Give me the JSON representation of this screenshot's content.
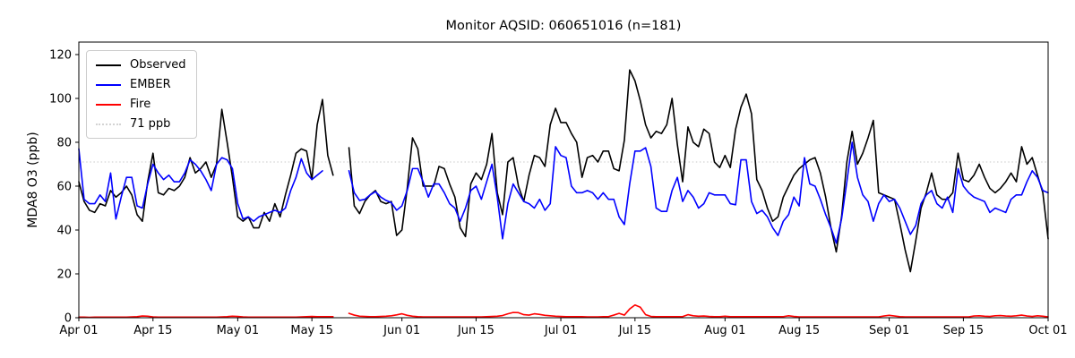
{
  "title": "Monitor AQSID: 060651016 (n=181)",
  "chart_data": {
    "type": "line",
    "title": "Monitor AQSID: 060651016 (n=181)",
    "xlabel": "",
    "ylabel": "MDA8 O3 (ppb)",
    "ylim": [
      0,
      125.7
    ],
    "yticks": [
      0,
      20,
      40,
      60,
      80,
      100,
      120
    ],
    "x_days_total": 183,
    "xticks": [
      {
        "day": 0,
        "label": "Apr 01"
      },
      {
        "day": 14,
        "label": "Apr 15"
      },
      {
        "day": 30,
        "label": "May 01"
      },
      {
        "day": 44,
        "label": "May 15"
      },
      {
        "day": 61,
        "label": "Jun 01"
      },
      {
        "day": 75,
        "label": "Jun 15"
      },
      {
        "day": 91,
        "label": "Jul 01"
      },
      {
        "day": 105,
        "label": "Jul 15"
      },
      {
        "day": 122,
        "label": "Aug 01"
      },
      {
        "day": 136,
        "label": "Aug 15"
      },
      {
        "day": 153,
        "label": "Sep 01"
      },
      {
        "day": 167,
        "label": "Sep 15"
      },
      {
        "day": 183,
        "label": "Oct 01"
      }
    ],
    "grid": false,
    "legend_position": "upper left",
    "reference_line": {
      "label": "71 ppb",
      "value": 71,
      "color": "#d3d3d3",
      "style": "dotted"
    },
    "series": [
      {
        "name": "Observed",
        "color": "#000000",
        "style": "solid",
        "values": [
          62,
          53,
          49,
          48,
          52,
          51,
          58,
          55,
          57,
          60,
          56,
          47,
          44,
          62,
          75,
          57,
          56,
          59,
          58,
          60,
          64,
          73,
          66,
          68,
          71,
          64,
          70,
          95,
          80,
          64,
          46,
          44,
          46,
          41,
          41,
          48,
          44,
          52,
          46,
          56,
          65,
          75,
          77,
          76,
          63,
          88,
          99.5,
          74,
          65,
          null,
          null,
          77.5,
          51,
          47.5,
          53,
          56,
          58,
          53,
          52,
          53,
          37.5,
          40,
          59,
          82,
          77,
          60,
          60,
          60,
          69,
          68,
          61,
          55,
          41,
          37,
          61,
          66,
          63,
          70,
          84,
          57,
          47,
          71,
          73,
          60,
          53,
          65,
          74,
          73,
          69,
          88,
          95.5,
          89,
          89,
          84,
          80,
          64,
          73,
          74,
          71,
          76,
          76,
          68,
          67,
          81,
          113,
          108,
          99,
          88,
          82,
          85,
          84,
          88,
          100,
          79,
          62,
          87,
          80,
          78,
          86,
          84,
          71,
          68.5,
          74,
          68.5,
          86,
          96,
          102,
          93,
          63,
          58,
          50,
          44,
          46,
          55,
          60,
          65,
          68,
          70,
          72,
          73,
          66,
          55,
          41,
          30,
          46,
          71,
          85,
          70,
          75,
          82,
          90,
          57,
          56,
          55,
          54,
          43,
          31,
          21,
          35,
          50,
          57,
          66,
          56,
          54,
          54,
          57,
          75,
          63,
          62,
          65,
          70,
          64,
          59,
          57,
          59,
          62,
          66,
          62,
          78,
          70,
          73,
          65,
          57,
          36
        ]
      },
      {
        "name": "EMBER",
        "color": "#0000ff",
        "style": "solid",
        "values": [
          77,
          54,
          52,
          52,
          56,
          53,
          66,
          45,
          55,
          64,
          64,
          51,
          50,
          61,
          70,
          66,
          63,
          65,
          62,
          62,
          66,
          72,
          70,
          67,
          63,
          58,
          70,
          73,
          72,
          68,
          52,
          45,
          46,
          44,
          46,
          47,
          48,
          49,
          48,
          50,
          58,
          64,
          72.5,
          66,
          63,
          65,
          67,
          null,
          null,
          null,
          null,
          67,
          57,
          53.5,
          54,
          56,
          57.5,
          55,
          53.5,
          52.5,
          49,
          51,
          58,
          68,
          68,
          62,
          55,
          61,
          61,
          57,
          52,
          50,
          44,
          50,
          58,
          60,
          54,
          62,
          70,
          55,
          36,
          52,
          61,
          57,
          53,
          52,
          50,
          54,
          49,
          52,
          78,
          74,
          73,
          60,
          57,
          57,
          58,
          57,
          54,
          57,
          54,
          54,
          46,
          42.5,
          61,
          76,
          76,
          77.5,
          69,
          50,
          48.5,
          48.5,
          58,
          64,
          53,
          58,
          55,
          50,
          52,
          57,
          56,
          56,
          56,
          52,
          51.5,
          72,
          72,
          53,
          47.5,
          49,
          46,
          41,
          37.5,
          44,
          47,
          55,
          51,
          73,
          61,
          60,
          54,
          47,
          41,
          34,
          45,
          62,
          80,
          64,
          56,
          53,
          44,
          52,
          56,
          53,
          54,
          50,
          44,
          38,
          42,
          52,
          56,
          58,
          52,
          50,
          55,
          48,
          68,
          60,
          57,
          55,
          54,
          53,
          48,
          50,
          49,
          48,
          54,
          56,
          56,
          62,
          67,
          64,
          58,
          57
        ]
      },
      {
        "name": "Fire",
        "color": "#ff0000",
        "style": "solid",
        "values": [
          0.3,
          0.3,
          0.2,
          0.3,
          0.3,
          0.3,
          0.3,
          0.3,
          0.3,
          0.3,
          0.4,
          0.5,
          0.8,
          0.7,
          0.4,
          0.3,
          0.3,
          0.3,
          0.3,
          0.3,
          0.3,
          0.3,
          0.3,
          0.3,
          0.3,
          0.3,
          0.3,
          0.4,
          0.5,
          0.7,
          0.6,
          0.4,
          0.3,
          0.3,
          0.3,
          0.3,
          0.3,
          0.3,
          0.3,
          0.3,
          0.3,
          0.3,
          0.4,
          0.5,
          0.6,
          0.5,
          0.5,
          0.5,
          0.5,
          null,
          null,
          2.0,
          1.2,
          0.7,
          0.6,
          0.5,
          0.5,
          0.6,
          0.7,
          0.9,
          1.3,
          1.8,
          1.1,
          0.7,
          0.5,
          0.4,
          0.4,
          0.4,
          0.4,
          0.4,
          0.4,
          0.4,
          0.4,
          0.4,
          0.4,
          0.4,
          0.4,
          0.5,
          0.6,
          0.7,
          1.0,
          1.8,
          2.4,
          2.3,
          1.4,
          1.2,
          1.8,
          1.5,
          1.1,
          0.9,
          0.7,
          0.6,
          0.5,
          0.5,
          0.5,
          0.5,
          0.4,
          0.4,
          0.4,
          0.5,
          0.5,
          1.2,
          2.0,
          1.2,
          4.0,
          5.8,
          4.8,
          1.4,
          0.6,
          0.5,
          0.5,
          0.5,
          0.5,
          0.5,
          0.5,
          1.4,
          0.9,
          0.7,
          0.8,
          0.6,
          0.5,
          0.5,
          0.7,
          0.5,
          0.5,
          0.5,
          0.5,
          0.5,
          0.5,
          0.5,
          0.5,
          0.5,
          0.5,
          0.5,
          0.9,
          0.6,
          0.4,
          0.4,
          0.4,
          0.4,
          0.4,
          0.4,
          0.4,
          0.4,
          0.4,
          0.4,
          0.4,
          0.4,
          0.4,
          0.4,
          0.4,
          0.4,
          0.8,
          1.1,
          0.8,
          0.5,
          0.4,
          0.4,
          0.4,
          0.4,
          0.4,
          0.4,
          0.4,
          0.4,
          0.4,
          0.4,
          0.4,
          0.4,
          0.4,
          0.8,
          0.9,
          0.7,
          0.6,
          0.9,
          1.0,
          0.8,
          0.7,
          0.9,
          1.2,
          0.8,
          0.6,
          0.9,
          0.7,
          0.4
        ]
      }
    ]
  },
  "legend": {
    "items": [
      {
        "label": "Observed",
        "color": "#000000",
        "style": "solid"
      },
      {
        "label": "EMBER",
        "color": "#0000ff",
        "style": "solid"
      },
      {
        "label": "Fire",
        "color": "#ff0000",
        "style": "solid"
      },
      {
        "label": "71 ppb",
        "color": "#d3d3d3",
        "style": "dotted"
      }
    ]
  },
  "colors": {
    "background": "#ffffff",
    "axis": "#000000",
    "observed": "#000000",
    "ember": "#0000ff",
    "fire": "#ff0000",
    "reference": "#d3d3d3"
  }
}
